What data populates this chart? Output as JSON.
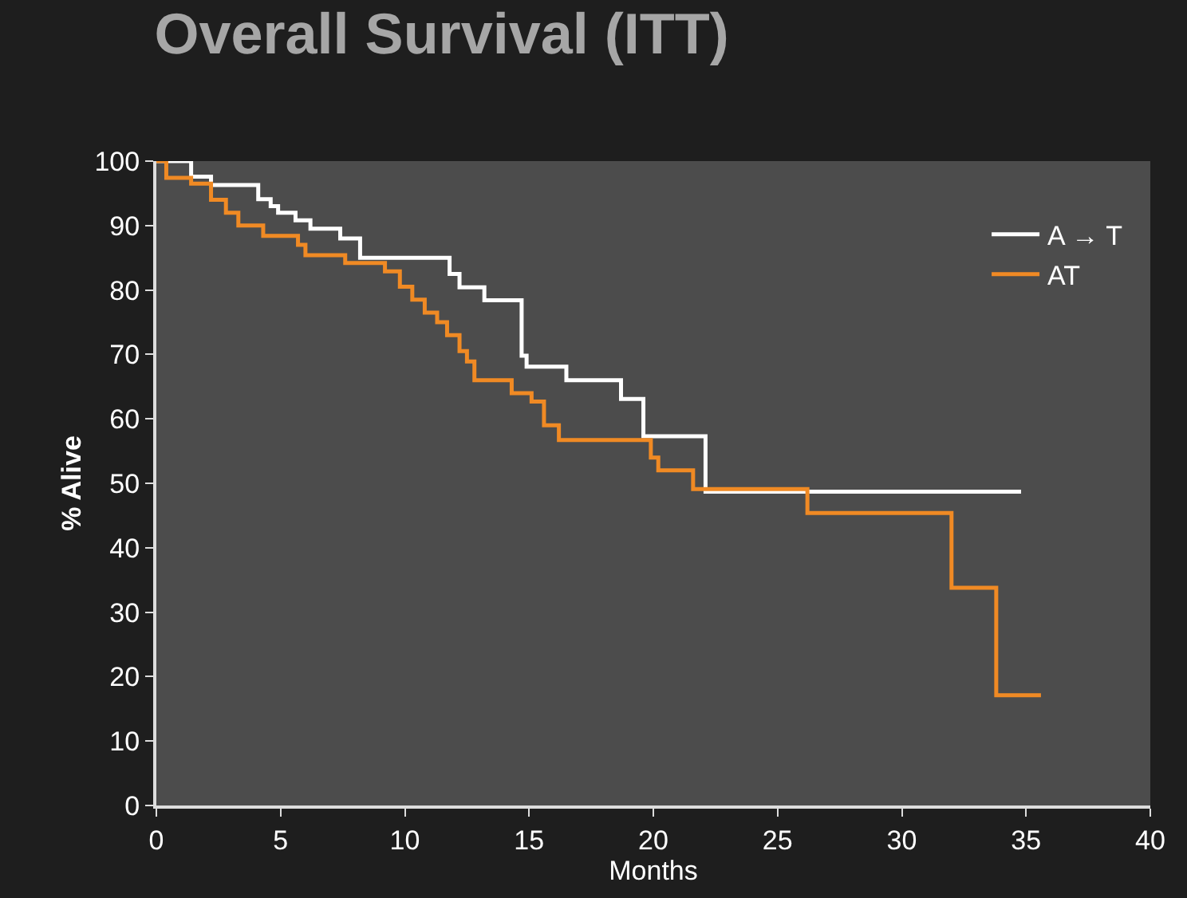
{
  "chart_data": {
    "type": "step",
    "title": "Overall Survival (ITT)",
    "xlabel": "Months",
    "ylabel": "% Alive",
    "xlim": [
      0,
      40
    ],
    "xticks": [
      0,
      5,
      10,
      15,
      20,
      25,
      30,
      35,
      40
    ],
    "ylim": [
      0,
      100
    ],
    "yticks": [
      0,
      10,
      20,
      30,
      40,
      50,
      60,
      70,
      80,
      90,
      100
    ],
    "grid": false,
    "legend": "top right",
    "marker": "none",
    "line_style": "solid",
    "series": [
      {
        "name": "A → T",
        "color": "#ffffff",
        "x": [
          0,
          1.4,
          2.2,
          4.1,
          4.6,
          4.9,
          5.6,
          6.2,
          7.4,
          8.2,
          11.8,
          12.2,
          13.2,
          14.7,
          14.9,
          16.5,
          18.7,
          19.6,
          22.1,
          34.8
        ],
        "values": [
          100,
          97.6,
          96.3,
          94.1,
          93,
          92,
          90.8,
          89.5,
          88,
          85,
          82.5,
          80.4,
          78.4,
          69.8,
          68.1,
          66,
          63.1,
          57.3,
          48.7,
          48.7
        ]
      },
      {
        "name": "AT",
        "color": "#f08a24",
        "x": [
          0,
          0.4,
          1.4,
          2.2,
          2.8,
          3.3,
          4.3,
          5.7,
          6,
          7.6,
          9.2,
          9.8,
          10.3,
          10.8,
          11.3,
          11.7,
          12.2,
          12.5,
          12.8,
          14.3,
          15.1,
          15.6,
          16.2,
          19.9,
          20.2,
          21.6,
          26.2,
          32,
          33.8,
          35.6
        ],
        "values": [
          100,
          97.4,
          96.5,
          94,
          92,
          90,
          88.4,
          87,
          85.4,
          84.2,
          82.9,
          80.5,
          78.5,
          76.5,
          75,
          73,
          70.5,
          68.9,
          66,
          64,
          62.7,
          59,
          56.7,
          54,
          52,
          49.1,
          45.4,
          33.8,
          17.1,
          17.1
        ]
      }
    ]
  }
}
